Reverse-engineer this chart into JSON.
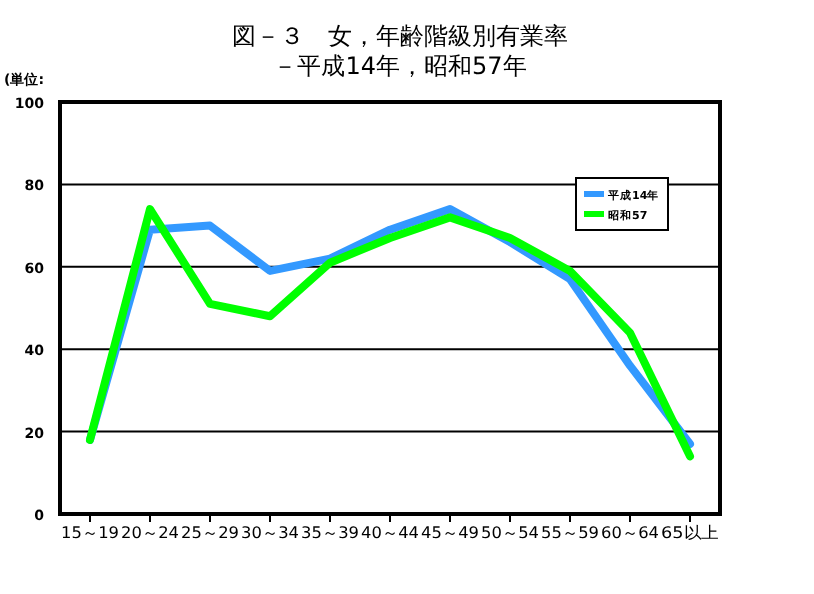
{
  "chart_data": {
    "type": "line",
    "title": "図－３　女，年齢階級別有業率",
    "subtitle": "－平成14年，昭和57年",
    "annotations": [
      "(単位:"
    ],
    "categories": [
      "15～19",
      "20～24",
      "25～29",
      "30～34",
      "35～39",
      "40～44",
      "45～49",
      "50～54",
      "55～59",
      "60～64",
      "65以上"
    ],
    "series": [
      {
        "name": "平成14年",
        "color": "#3399ff",
        "values": [
          18,
          69,
          70,
          59,
          62,
          69,
          74,
          66,
          57,
          36,
          17
        ]
      },
      {
        "name": "昭和57",
        "color": "#00ff00",
        "values": [
          18,
          74,
          51,
          48,
          61,
          67,
          72,
          67,
          59,
          44,
          14
        ]
      }
    ],
    "ylim": [
      0,
      100
    ],
    "yticks": [
      0,
      20,
      40,
      60,
      80,
      100
    ],
    "grid": "y",
    "legend": "top right",
    "marker": "none",
    "line_style": "solid"
  }
}
